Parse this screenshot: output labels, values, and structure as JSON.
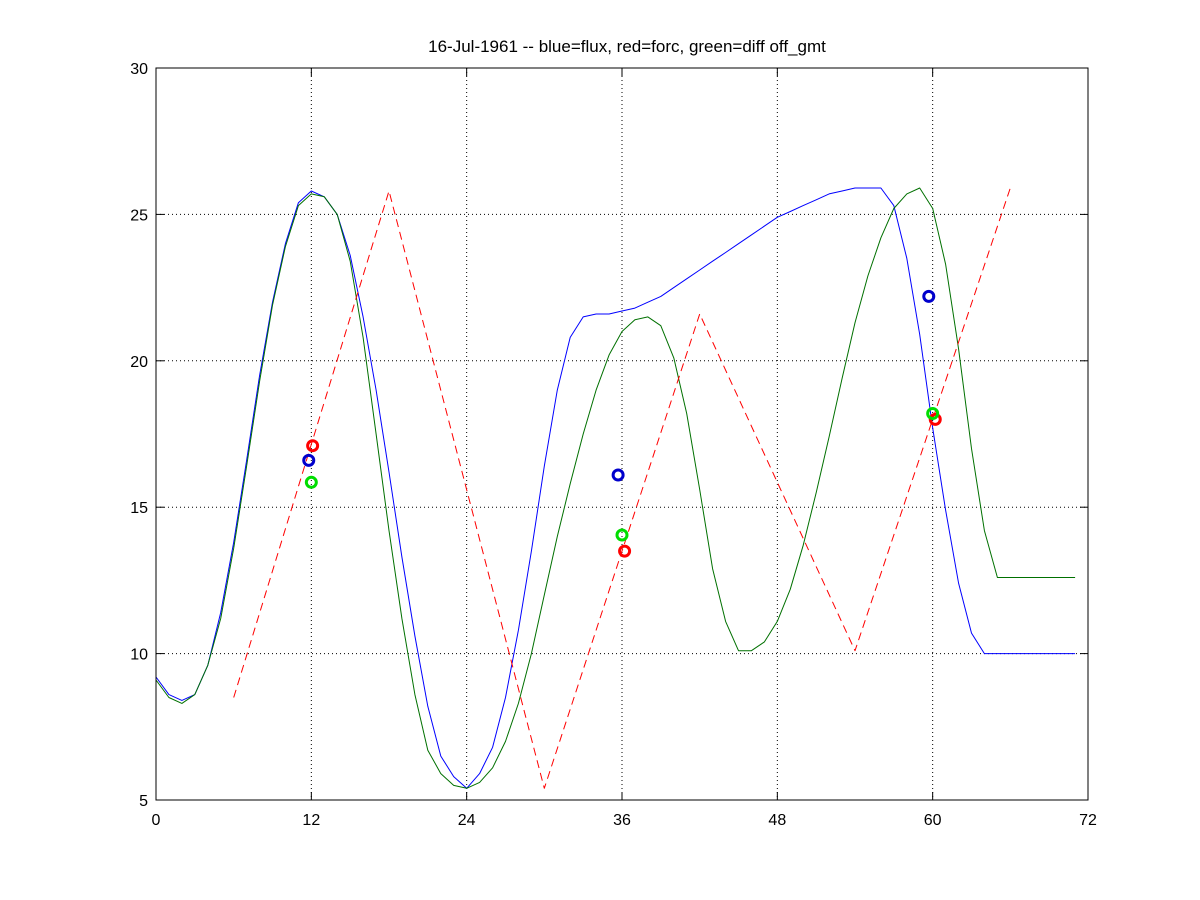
{
  "chart_data": {
    "type": "line",
    "title": "16-Jul-1961 -- blue=flux, red=forc, green=diff off_gmt",
    "xlabel": "",
    "ylabel": "",
    "xlim": [
      0,
      72
    ],
    "ylim": [
      5,
      30
    ],
    "xticks": [
      0,
      12,
      24,
      36,
      48,
      60,
      72
    ],
    "yticks": [
      5,
      10,
      15,
      20,
      25,
      30
    ],
    "xtick_labels": [
      "0",
      "12",
      "24",
      "36",
      "48",
      "60",
      "72"
    ],
    "ytick_labels": [
      "5",
      "10",
      "15",
      "20",
      "25",
      "30"
    ],
    "grid": true,
    "series": [
      {
        "color": "#0000ff",
        "style": "solid",
        "x": [
          0,
          1,
          2,
          3,
          4,
          5,
          6,
          7,
          8,
          9,
          10,
          11,
          12,
          13,
          14,
          15,
          16,
          17,
          18,
          19,
          20,
          21,
          22,
          23,
          24,
          25,
          26,
          27,
          28,
          29,
          30,
          31,
          32,
          33,
          34,
          35,
          36,
          37,
          38,
          39,
          40,
          41,
          42,
          43,
          44,
          45,
          46,
          47,
          48,
          49,
          50,
          51,
          52,
          53,
          54,
          55,
          56,
          57,
          58,
          59,
          60,
          61,
          62,
          63,
          64,
          65,
          66,
          67,
          68,
          69,
          70,
          71
        ],
        "y": [
          9.2,
          8.6,
          8.4,
          8.6,
          9.6,
          11.4,
          13.8,
          16.6,
          19.5,
          22.0,
          24.0,
          25.4,
          25.8,
          25.6,
          25.0,
          23.6,
          21.5,
          19.0,
          16.2,
          13.3,
          10.6,
          8.2,
          6.5,
          5.8,
          5.4,
          5.9,
          6.8,
          8.5,
          10.8,
          13.5,
          16.4,
          19.0,
          20.8,
          21.5,
          21.6,
          21.6,
          21.7,
          21.8,
          22.0,
          22.2,
          22.5,
          22.8,
          23.1,
          23.4,
          23.7,
          24.0,
          24.3,
          24.6,
          24.9,
          25.1,
          25.3,
          25.5,
          25.7,
          25.8,
          25.9,
          25.9,
          25.9,
          25.3,
          23.5,
          20.9,
          17.7,
          14.9,
          12.4,
          10.7,
          10.0,
          10.0,
          10.0,
          10.0,
          10.0,
          10.0,
          10.0,
          10.0
        ]
      },
      {
        "color": "#007000",
        "style": "solid",
        "x": [
          0,
          1,
          2,
          3,
          4,
          5,
          6,
          7,
          8,
          9,
          10,
          11,
          12,
          13,
          14,
          15,
          16,
          17,
          18,
          19,
          20,
          21,
          22,
          23,
          24,
          25,
          26,
          27,
          28,
          29,
          30,
          31,
          32,
          33,
          34,
          35,
          36,
          37,
          38,
          39,
          40,
          41,
          42,
          43,
          44,
          45,
          46,
          47,
          48,
          49,
          50,
          51,
          52,
          53,
          54,
          55,
          56,
          57,
          58,
          59,
          60,
          61,
          62,
          63,
          64,
          65,
          66,
          67,
          68,
          69,
          70,
          71
        ],
        "y": [
          9.1,
          8.5,
          8.3,
          8.6,
          9.6,
          11.2,
          13.6,
          16.4,
          19.3,
          21.9,
          23.9,
          25.3,
          25.7,
          25.6,
          25.0,
          23.4,
          20.8,
          17.5,
          14.2,
          11.2,
          8.6,
          6.7,
          5.9,
          5.5,
          5.4,
          5.6,
          6.1,
          7.0,
          8.3,
          10.0,
          12.0,
          14.0,
          15.8,
          17.5,
          19.0,
          20.2,
          21.0,
          21.4,
          21.5,
          21.2,
          20.1,
          18.2,
          15.6,
          12.9,
          11.1,
          10.1,
          10.1,
          10.4,
          11.1,
          12.2,
          13.7,
          15.5,
          17.4,
          19.4,
          21.3,
          22.9,
          24.2,
          25.2,
          25.7,
          25.9,
          25.2,
          23.3,
          20.4,
          17.0,
          14.2,
          12.6,
          12.6,
          12.6,
          12.6,
          12.6,
          12.6,
          12.6
        ]
      },
      {
        "color": "#ff0000",
        "style": "dashed",
        "x": [
          6,
          18,
          30,
          42,
          54,
          66
        ],
        "y": [
          8.5,
          25.8,
          5.4,
          21.6,
          10.1,
          25.9
        ]
      }
    ],
    "markers": [
      {
        "color": "#0000cc",
        "x": [
          11.8,
          35.7,
          59.7
        ],
        "y": [
          16.6,
          16.1,
          22.2
        ]
      },
      {
        "color": "#ff0000",
        "x": [
          12.1,
          36.2,
          60.2
        ],
        "y": [
          17.1,
          13.5,
          18.0
        ]
      },
      {
        "color": "#00dd00",
        "x": [
          12.0,
          36.0,
          60.0
        ],
        "y": [
          15.85,
          14.05,
          18.2
        ]
      }
    ]
  }
}
